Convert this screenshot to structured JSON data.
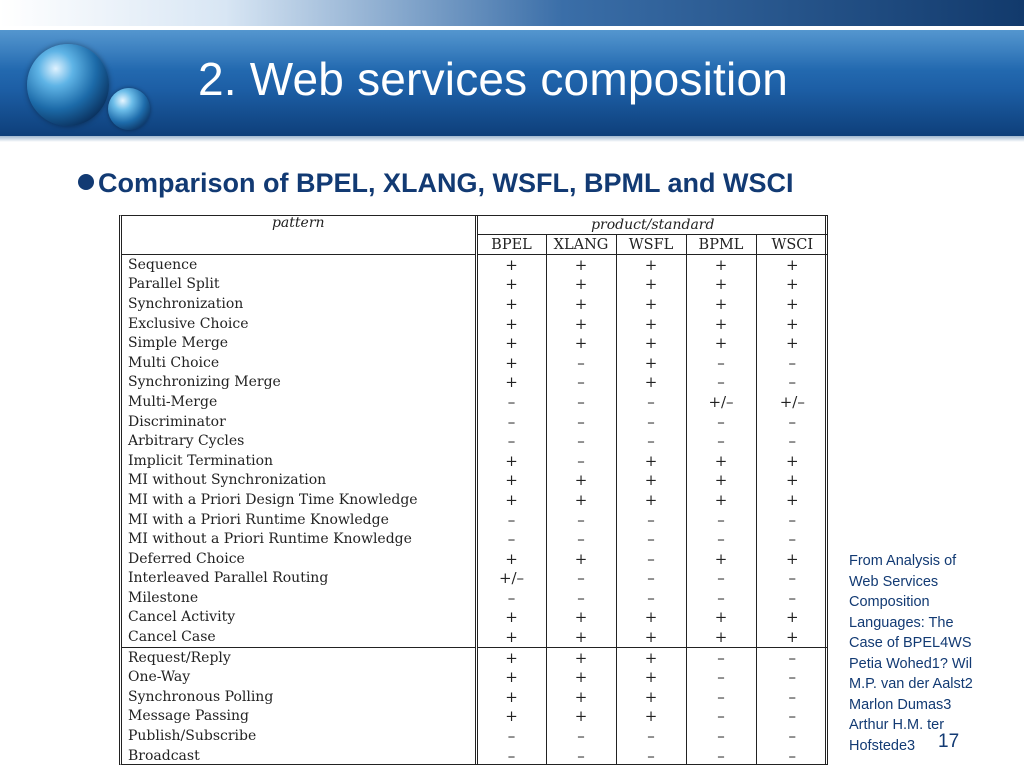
{
  "slide": {
    "title": "2. Web services composition",
    "bullet": "Comparison of BPEL, XLANG, WSFL, BPML and WSCI",
    "page_number": "17"
  },
  "caption": {
    "lines": [
      "From Analysis of",
      "Web Services",
      "Composition",
      "Languages: The",
      "Case of BPEL4WS",
      "Petia Wohed1? Wil",
      "M.P. van der Aalst2",
      "Marlon Dumas3",
      "Arthur H.M. ter",
      "Hofstede3"
    ]
  },
  "table": {
    "pattern_header": "pattern",
    "product_header": "product/standard",
    "columns": [
      "BPEL",
      "XLANG",
      "WSFL",
      "BPML",
      "WSCI"
    ],
    "rows": [
      {
        "name": "Sequence",
        "values": [
          "+",
          "+",
          "+",
          "+",
          "+"
        ]
      },
      {
        "name": "Parallel Split",
        "values": [
          "+",
          "+",
          "+",
          "+",
          "+"
        ]
      },
      {
        "name": "Synchronization",
        "values": [
          "+",
          "+",
          "+",
          "+",
          "+"
        ]
      },
      {
        "name": "Exclusive Choice",
        "values": [
          "+",
          "+",
          "+",
          "+",
          "+"
        ]
      },
      {
        "name": "Simple Merge",
        "values": [
          "+",
          "+",
          "+",
          "+",
          "+"
        ]
      },
      {
        "name": "Multi Choice",
        "values": [
          "+",
          "–",
          "+",
          "–",
          "–"
        ]
      },
      {
        "name": "Synchronizing Merge",
        "values": [
          "+",
          "–",
          "+",
          "–",
          "–"
        ]
      },
      {
        "name": "Multi-Merge",
        "values": [
          "–",
          "–",
          "–",
          "+/–",
          "+/–"
        ]
      },
      {
        "name": "Discriminator",
        "values": [
          "–",
          "–",
          "–",
          "–",
          "–"
        ]
      },
      {
        "name": "Arbitrary Cycles",
        "values": [
          "–",
          "–",
          "–",
          "–",
          "–"
        ]
      },
      {
        "name": "Implicit Termination",
        "values": [
          "+",
          "–",
          "+",
          "+",
          "+"
        ]
      },
      {
        "name": "MI without Synchronization",
        "values": [
          "+",
          "+",
          "+",
          "+",
          "+"
        ]
      },
      {
        "name": "MI with a Priori Design Time Knowledge",
        "values": [
          "+",
          "+",
          "+",
          "+",
          "+"
        ]
      },
      {
        "name": "MI with a Priori Runtime Knowledge",
        "values": [
          "–",
          "–",
          "–",
          "–",
          "–"
        ]
      },
      {
        "name": "MI without a Priori Runtime Knowledge",
        "values": [
          "–",
          "–",
          "–",
          "–",
          "–"
        ]
      },
      {
        "name": "Deferred Choice",
        "values": [
          "+",
          "+",
          "–",
          "+",
          "+"
        ]
      },
      {
        "name": "Interleaved Parallel Routing",
        "values": [
          "+/–",
          "–",
          "–",
          "–",
          "–"
        ]
      },
      {
        "name": "Milestone",
        "values": [
          "–",
          "–",
          "–",
          "–",
          "–"
        ]
      },
      {
        "name": "Cancel Activity",
        "values": [
          "+",
          "+",
          "+",
          "+",
          "+"
        ]
      },
      {
        "name": "Cancel Case",
        "values": [
          "+",
          "+",
          "+",
          "+",
          "+"
        ]
      },
      {
        "name": "Request/Reply",
        "values": [
          "+",
          "+",
          "+",
          "–",
          "–"
        ]
      },
      {
        "name": "One-Way",
        "values": [
          "+",
          "+",
          "+",
          "–",
          "–"
        ]
      },
      {
        "name": "Synchronous Polling",
        "values": [
          "+",
          "+",
          "+",
          "–",
          "–"
        ]
      },
      {
        "name": "Message Passing",
        "values": [
          "+",
          "+",
          "+",
          "–",
          "–"
        ]
      },
      {
        "name": "Publish/Subscribe",
        "values": [
          "–",
          "–",
          "–",
          "–",
          "–"
        ]
      },
      {
        "name": "Broadcast",
        "values": [
          "–",
          "–",
          "–",
          "–",
          "–"
        ]
      }
    ],
    "section_break_before_row": 20
  }
}
